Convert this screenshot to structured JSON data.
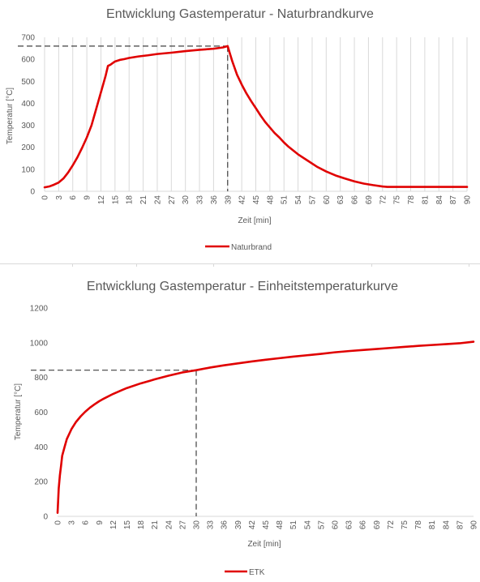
{
  "chart_data": [
    {
      "type": "line",
      "title": "Entwicklung Gastemperatur - Naturbrandkurve",
      "xlabel": "Zeit  [min]",
      "ylabel": "Temperatur [°C]",
      "xlim": [
        0,
        90
      ],
      "ylim": [
        0,
        700
      ],
      "xticks": [
        0,
        3,
        6,
        9,
        12,
        15,
        18,
        21,
        24,
        27,
        30,
        33,
        36,
        39,
        42,
        45,
        48,
        51,
        54,
        57,
        60,
        63,
        66,
        69,
        72,
        75,
        78,
        81,
        84,
        87,
        90
      ],
      "yticks": [
        0,
        100,
        200,
        300,
        400,
        500,
        600,
        700
      ],
      "grid": "vertical",
      "legend": "bottom",
      "series": [
        {
          "name": "Naturbrand",
          "color": "#e00000",
          "points": [
            [
              0,
              18
            ],
            [
              1,
              22
            ],
            [
              2,
              30
            ],
            [
              3,
              40
            ],
            [
              4,
              58
            ],
            [
              5,
              85
            ],
            [
              6,
              118
            ],
            [
              7,
              155
            ],
            [
              8,
              198
            ],
            [
              9,
              245
            ],
            [
              10,
              300
            ],
            [
              11,
              375
            ],
            [
              12,
              450
            ],
            [
              13,
              525
            ],
            [
              13.5,
              570
            ],
            [
              14,
              575
            ],
            [
              15,
              590
            ],
            [
              16,
              597
            ],
            [
              17,
              601
            ],
            [
              18,
              606
            ],
            [
              20,
              613
            ],
            [
              22,
              618
            ],
            [
              24,
              624
            ],
            [
              27,
              630
            ],
            [
              30,
              637
            ],
            [
              33,
              643
            ],
            [
              36,
              648
            ],
            [
              38,
              654
            ],
            [
              39,
              660
            ],
            [
              40,
              590
            ],
            [
              41,
              530
            ],
            [
              42,
              485
            ],
            [
              43,
              445
            ],
            [
              44,
              410
            ],
            [
              45,
              378
            ],
            [
              46,
              345
            ],
            [
              47,
              315
            ],
            [
              48,
              290
            ],
            [
              49,
              265
            ],
            [
              50,
              245
            ],
            [
              51,
              222
            ],
            [
              52,
              202
            ],
            [
              53,
              185
            ],
            [
              54,
              168
            ],
            [
              56,
              140
            ],
            [
              58,
              112
            ],
            [
              60,
              90
            ],
            [
              62,
              72
            ],
            [
              64,
              58
            ],
            [
              66,
              45
            ],
            [
              68,
              35
            ],
            [
              70,
              28
            ],
            [
              72,
              22
            ],
            [
              73,
              20
            ],
            [
              75,
              20
            ],
            [
              80,
              20
            ],
            [
              85,
              20
            ],
            [
              90,
              20
            ]
          ]
        }
      ],
      "annotations": [
        {
          "x": 39,
          "y": 660,
          "style": "dashed guide"
        }
      ]
    },
    {
      "type": "line",
      "title": "Entwicklung Gastemperatur - Einheitstemperaturkurve",
      "xlabel": "Zeit  [min]",
      "ylabel": "Temperatur  [°C]",
      "xlim": [
        0,
        90
      ],
      "ylim": [
        0,
        1200
      ],
      "xticks": [
        0,
        3,
        6,
        9,
        12,
        15,
        18,
        21,
        24,
        27,
        30,
        33,
        36,
        39,
        42,
        45,
        48,
        51,
        54,
        57,
        60,
        63,
        66,
        69,
        72,
        75,
        78,
        81,
        84,
        87,
        90
      ],
      "yticks": [
        0,
        200,
        400,
        600,
        800,
        1000,
        1200
      ],
      "grid": "none",
      "legend": "bottom",
      "series": [
        {
          "name": "ETK",
          "color": "#e00000",
          "points": [
            [
              0,
              20
            ],
            [
              0.25,
              161
            ],
            [
              0.5,
              236
            ],
            [
              0.75,
              290
            ],
            [
              1,
              349
            ],
            [
              1.5,
              398
            ],
            [
              2,
              445
            ],
            [
              3,
              502
            ],
            [
              4,
              544
            ],
            [
              5,
              576
            ],
            [
              6,
              603
            ],
            [
              7,
              626
            ],
            [
              8,
              645
            ],
            [
              9,
              663
            ],
            [
              10,
              678
            ],
            [
              12,
              705
            ],
            [
              14,
              728
            ],
            [
              15,
              739
            ],
            [
              18,
              766
            ],
            [
              20,
              781
            ],
            [
              21,
              789
            ],
            [
              24,
              810
            ],
            [
              27,
              829
            ],
            [
              30,
              842
            ],
            [
              33,
              857
            ],
            [
              36,
              870
            ],
            [
              39,
              881
            ],
            [
              42,
              892
            ],
            [
              45,
              902
            ],
            [
              48,
              911
            ],
            [
              51,
              920
            ],
            [
              54,
              928
            ],
            [
              57,
              936
            ],
            [
              60,
              945
            ],
            [
              63,
              952
            ],
            [
              66,
              958
            ],
            [
              69,
              964
            ],
            [
              72,
              970
            ],
            [
              75,
              976
            ],
            [
              78,
              982
            ],
            [
              81,
              987
            ],
            [
              84,
              992
            ],
            [
              87,
              997
            ],
            [
              90,
              1006
            ]
          ]
        }
      ],
      "annotations": [
        {
          "x": 30,
          "y": 842,
          "style": "dashed guide"
        }
      ]
    }
  ]
}
